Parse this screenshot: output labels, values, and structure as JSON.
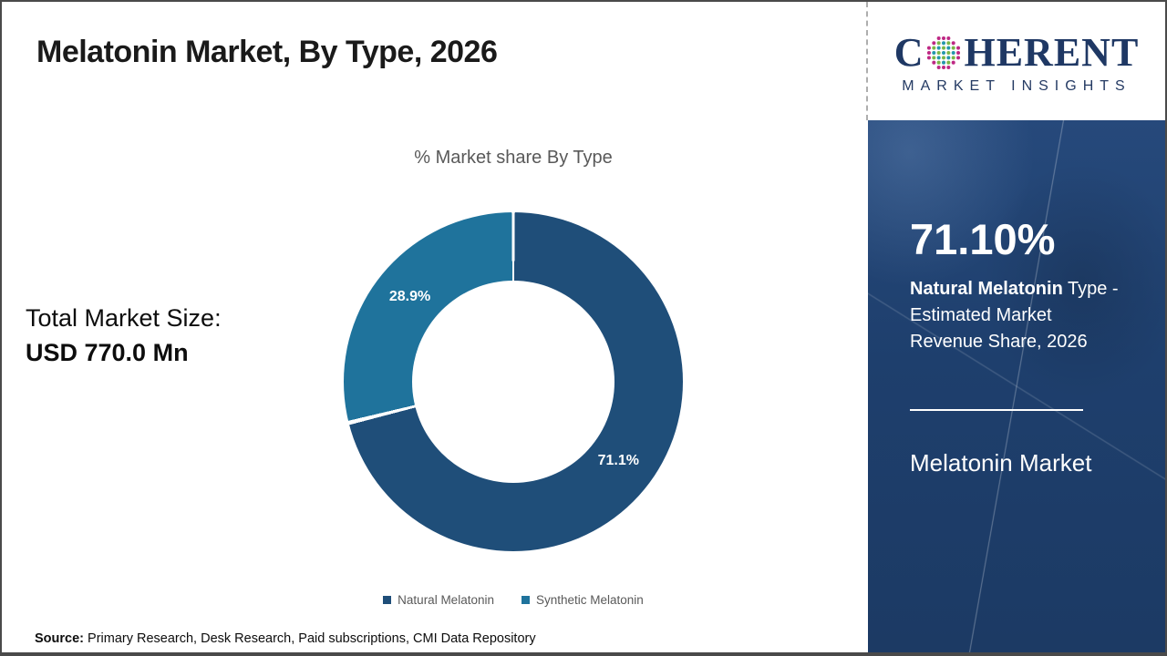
{
  "header": {
    "title": "Melatonin Market, By Type, 2026"
  },
  "logo": {
    "text_c": "C",
    "text_rest": "HERENT",
    "subtitle": "MARKET INSIGHTS",
    "navy": "#1F3864",
    "dot_colors": {
      "teal": "#2497AC",
      "green": "#7AB648",
      "magenta": "#BE2884"
    }
  },
  "main": {
    "total_label": "Total Market Size:",
    "total_value": "USD 770.0 Mn"
  },
  "chart_data": {
    "type": "pie",
    "donut": true,
    "title": "% Market share By Type",
    "categories": [
      "Natural Melatonin",
      "Synthetic Melatonin"
    ],
    "values": [
      71.1,
      28.9
    ],
    "labels": [
      "71.1%",
      "28.9%"
    ],
    "colors": [
      "#1F4E79",
      "#1F739C"
    ],
    "legend_position": "bottom",
    "start_angle_deg": 0,
    "direction": "clockwise"
  },
  "sidebar": {
    "stat_value": "71.10%",
    "desc_bold": "Natural Melatonin",
    "desc_line1_rest": " Type -",
    "desc_line2": "Estimated Market",
    "desc_line3": "Revenue Share, 2026",
    "panel_title": "Melatonin Market",
    "panel_color": "#1E3F6D"
  },
  "footer": {
    "source_label": "Source:",
    "source_text": " Primary Research, Desk Research, Paid subscriptions, CMI Data Repository"
  }
}
